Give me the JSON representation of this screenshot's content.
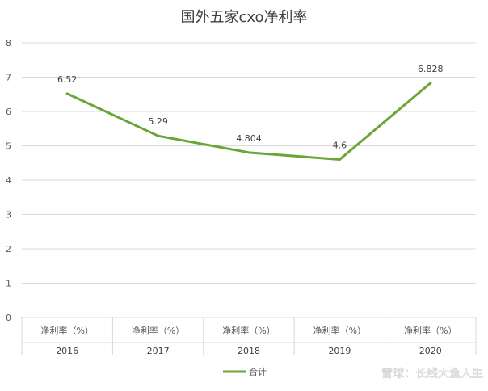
{
  "chart_data": {
    "type": "line",
    "title": "国外五家cxo净利率",
    "categories": [
      {
        "top": "净利率（%）",
        "bottom": "2016"
      },
      {
        "top": "净利率（%）",
        "bottom": "2017"
      },
      {
        "top": "净利率（%）",
        "bottom": "2018"
      },
      {
        "top": "净利率（%）",
        "bottom": "2019"
      },
      {
        "top": "净利率（%）",
        "bottom": "2020"
      }
    ],
    "series": [
      {
        "name": "合计",
        "values": [
          6.52,
          5.29,
          4.804,
          4.6,
          6.828
        ],
        "labels": [
          "6.52",
          "5.29",
          "4.804",
          "4.6",
          "6.828"
        ],
        "color": "#6aa536"
      }
    ],
    "ylim": [
      0,
      8
    ],
    "yticks": [
      "0",
      "1",
      "2",
      "3",
      "4",
      "5",
      "6",
      "7",
      "8"
    ],
    "grid": true,
    "legend": "bottom"
  },
  "watermark": "雪球：长线大鱼人生",
  "colors": {
    "grid": "#d9d9d9",
    "axis_text": "#595959",
    "title": "#404040"
  }
}
